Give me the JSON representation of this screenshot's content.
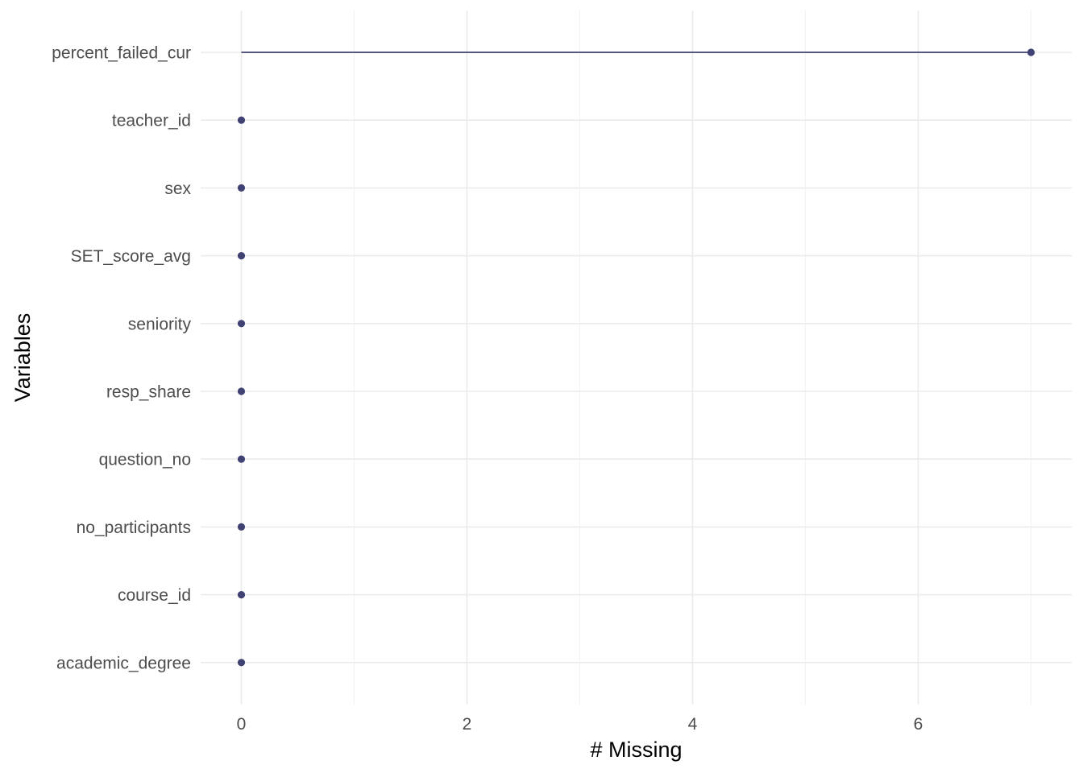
{
  "chart_data": {
    "type": "lollipop",
    "title": "",
    "xlabel": "# Missing",
    "ylabel": "Variables",
    "xlim": [
      0,
      7
    ],
    "xticks": [
      "0",
      "2",
      "4",
      "6"
    ],
    "grid": true,
    "legend": "none",
    "color": "#3f4272",
    "categories": [
      "percent_failed_cur",
      "teacher_id",
      "sex",
      "SET_score_avg",
      "seniority",
      "resp_share",
      "question_no",
      "no_participants",
      "course_id",
      "academic_degree"
    ],
    "values": [
      7,
      0,
      0,
      0,
      0,
      0,
      0,
      0,
      0,
      0
    ]
  }
}
